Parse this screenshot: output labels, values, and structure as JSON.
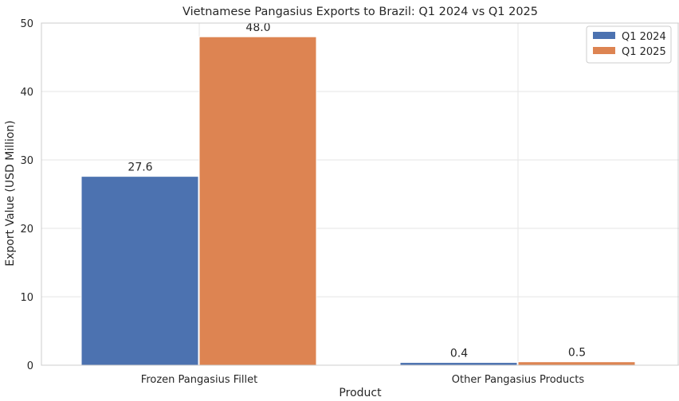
{
  "chart_data": {
    "type": "bar",
    "title": "Vietnamese Pangasius Exports to Brazil: Q1 2024 vs Q1 2025",
    "xlabel": "Product",
    "ylabel": "Export Value (USD Million)",
    "categories": [
      "Frozen Pangasius Fillet",
      "Other Pangasius Products"
    ],
    "series": [
      {
        "name": "Q1 2024",
        "values": [
          27.6,
          0.4
        ],
        "color": "#4c72b0",
        "labels": [
          "27.6",
          "0.4"
        ]
      },
      {
        "name": "Q1 2025",
        "values": [
          48.0,
          0.5
        ],
        "color": "#dd8452",
        "labels": [
          "48.0",
          "0.5"
        ]
      }
    ],
    "ylim": [
      0,
      50
    ],
    "yticks": [
      "0",
      "10",
      "20",
      "30",
      "40",
      "50"
    ],
    "grid": true,
    "legend_position": "top-right"
  }
}
